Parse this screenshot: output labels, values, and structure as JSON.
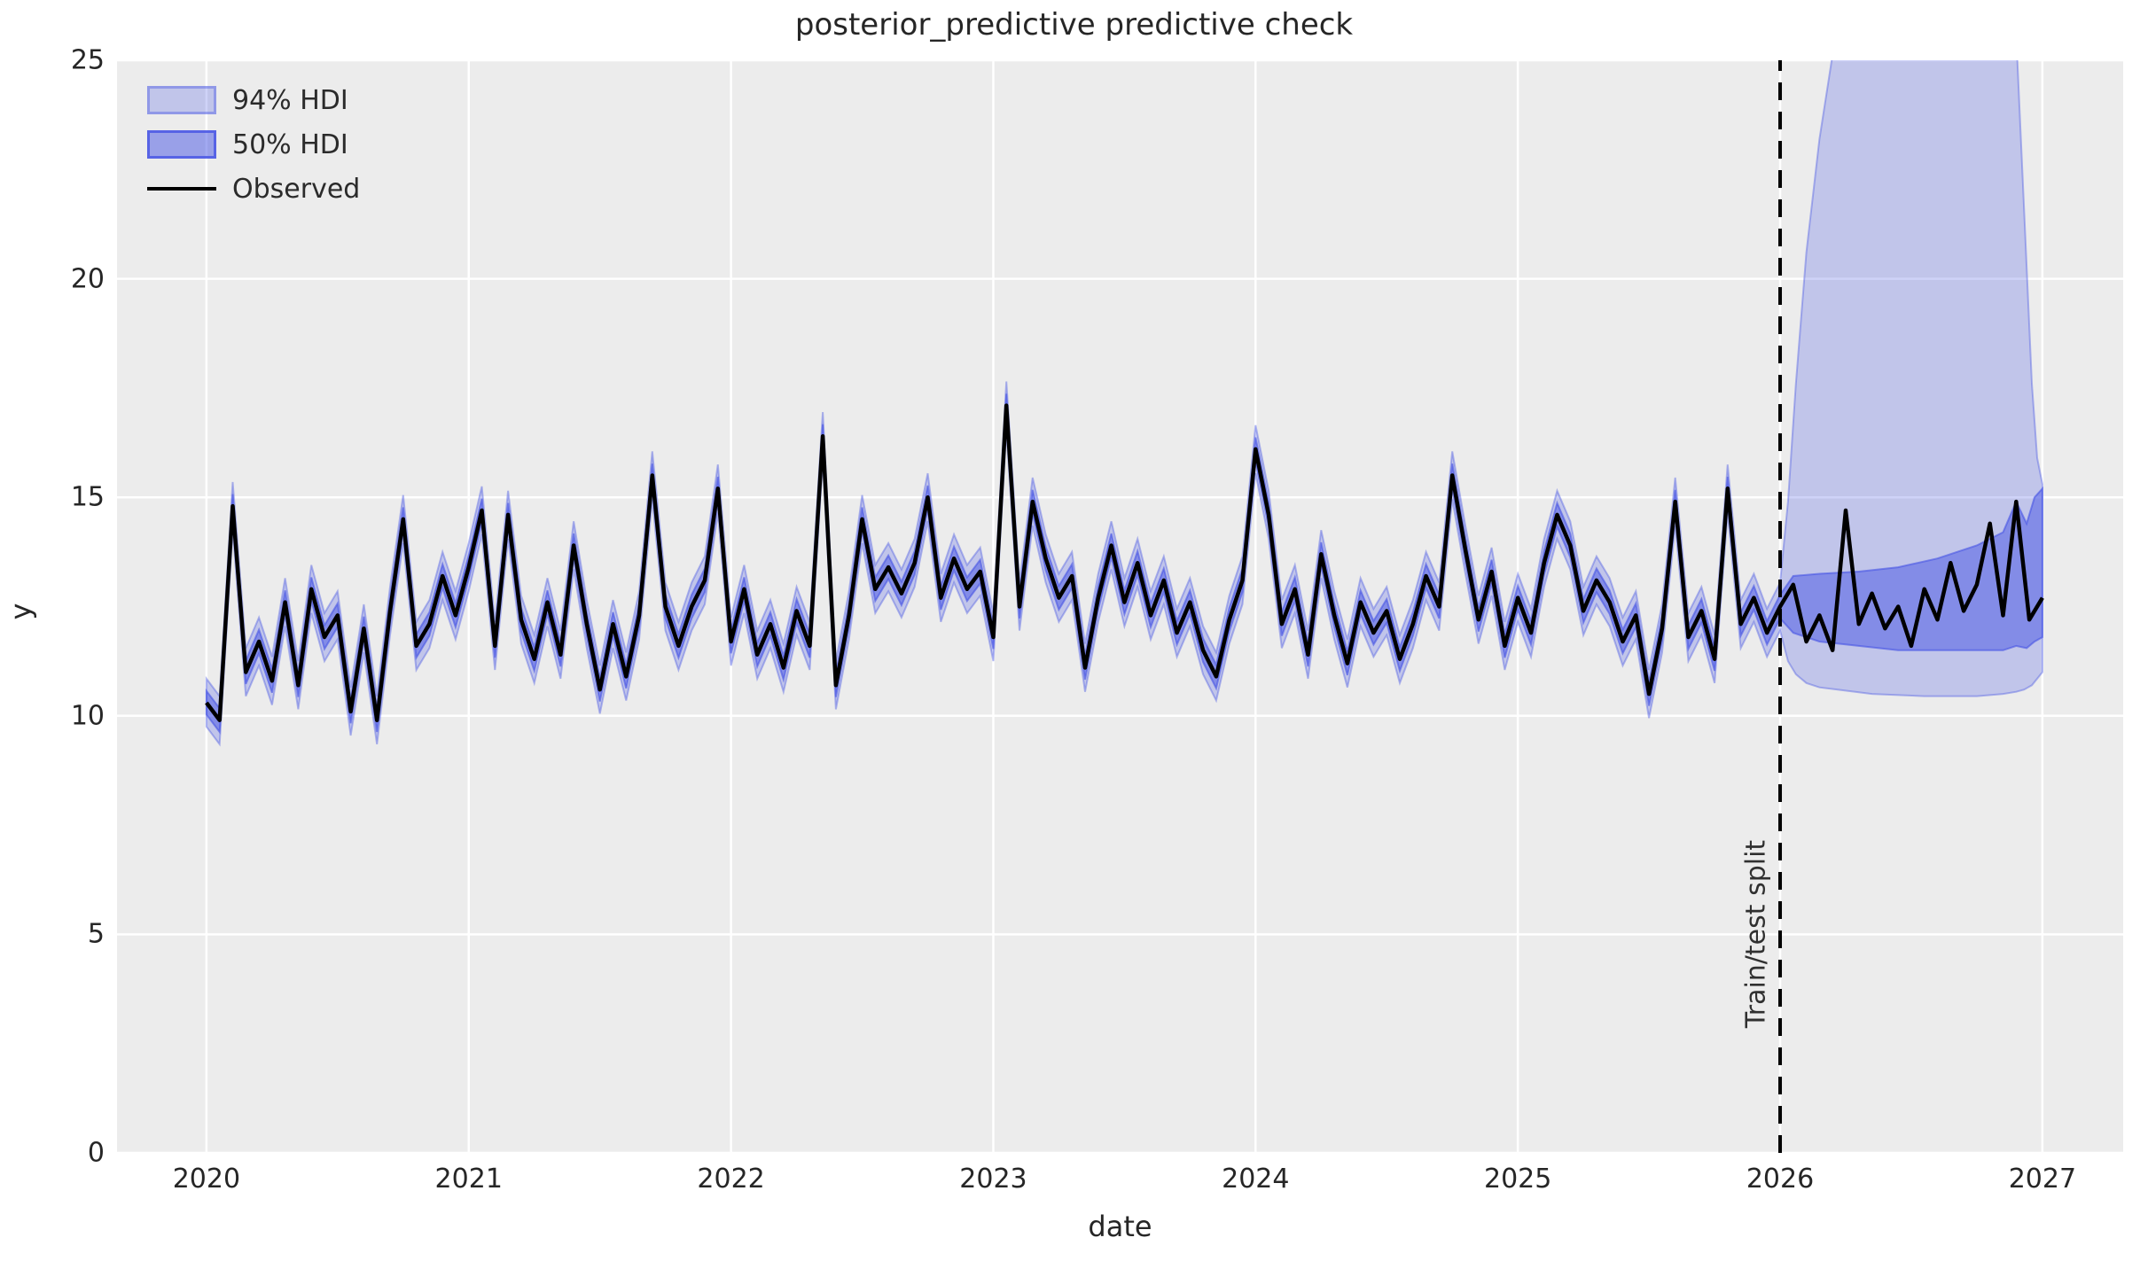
{
  "title": "posterior_predictive predictive check",
  "axes": {
    "xlabel": "date",
    "ylabel": "y"
  },
  "legend": {
    "items": [
      {
        "label": "94% HDI",
        "swatch": "hdi-94-patch"
      },
      {
        "label": "50% HDI",
        "swatch": "hdi-50-patch"
      },
      {
        "label": "Observed",
        "swatch": "black-line"
      }
    ]
  },
  "annotation": {
    "label": "Train/test split",
    "x": 2026.0
  },
  "colors": {
    "figure_background": "#ffffff",
    "plot_background": "#ececec",
    "gridline": "#ffffff",
    "observed_line": "#000000",
    "hdi_base_rgb": [
      70,
      84,
      228
    ],
    "hdi94_fill_alpha": 0.26,
    "hdi94_edge_alpha": 0.4,
    "hdi50_fill_alpha": 0.5,
    "hdi50_edge_alpha": 0.6,
    "split_line": "#000000",
    "text": "#262626"
  },
  "chart_data": {
    "type": "line",
    "title": "posterior_predictive predictive check",
    "xlabel": "date",
    "ylabel": "y",
    "xlim": [
      2019.659,
      2027.308
    ],
    "ylim": [
      0,
      25
    ],
    "xticks": [
      2020,
      2021,
      2022,
      2023,
      2024,
      2025,
      2026,
      2027
    ],
    "yticks": [
      0,
      5,
      10,
      15,
      20,
      25
    ],
    "grid": true,
    "legend_position": "upper-left",
    "train_test_split_x": 2026.0,
    "observed": {
      "name": "Observed",
      "x_start": 2020.0,
      "x_step_years": 0.05,
      "values": [
        10.3,
        9.9,
        14.8,
        11.0,
        11.7,
        10.8,
        12.6,
        10.7,
        12.9,
        11.8,
        12.3,
        10.1,
        12.0,
        9.9,
        12.4,
        14.5,
        11.6,
        12.1,
        13.2,
        12.3,
        13.4,
        14.7,
        11.6,
        14.6,
        12.2,
        11.3,
        12.6,
        11.4,
        13.9,
        12.1,
        10.6,
        12.1,
        10.9,
        12.3,
        15.5,
        12.5,
        11.6,
        12.5,
        13.1,
        15.2,
        11.7,
        12.9,
        11.4,
        12.1,
        11.1,
        12.4,
        11.6,
        16.4,
        10.7,
        12.3,
        14.5,
        12.9,
        13.4,
        12.8,
        13.5,
        15.0,
        12.7,
        13.6,
        12.9,
        13.3,
        11.8,
        17.1,
        12.5,
        14.9,
        13.6,
        12.7,
        13.2,
        11.1,
        12.7,
        13.9,
        12.6,
        13.5,
        12.3,
        13.1,
        11.9,
        12.6,
        11.5,
        10.9,
        12.2,
        13.1,
        16.1,
        14.6,
        12.1,
        12.9,
        11.4,
        13.7,
        12.3,
        11.2,
        12.6,
        11.9,
        12.4,
        11.3,
        12.1,
        13.2,
        12.5,
        15.5,
        13.8,
        12.2,
        13.3,
        11.6,
        12.7,
        11.9,
        13.5,
        14.6,
        13.9,
        12.4,
        13.1,
        12.6,
        11.7,
        12.3,
        10.5,
        12.0,
        14.9,
        11.8,
        12.4,
        11.3,
        15.2,
        12.1,
        12.7,
        11.9,
        12.5,
        13.0,
        11.7,
        12.3,
        11.5,
        14.7,
        12.1,
        12.8,
        12.0,
        12.5,
        11.6,
        12.9,
        12.2,
        13.5,
        12.4,
        13.0,
        14.4,
        12.3,
        14.9,
        12.2,
        12.7
      ]
    },
    "hdi94": {
      "name": "94% HDI",
      "halfwidth_train": 0.55,
      "test_envelope": [
        [
          2026.0,
          11.95,
          13.05
        ],
        [
          2026.03,
          11.25,
          14.9
        ],
        [
          2026.06,
          10.95,
          17.6
        ],
        [
          2026.1,
          10.75,
          20.6
        ],
        [
          2026.15,
          10.65,
          23.2
        ],
        [
          2026.22,
          10.6,
          25.9
        ],
        [
          2026.35,
          10.5,
          27.6
        ],
        [
          2026.55,
          10.45,
          28.4
        ],
        [
          2026.75,
          10.45,
          28.4
        ],
        [
          2026.85,
          10.5,
          27.6
        ],
        [
          2026.9,
          10.55,
          25.6
        ],
        [
          2026.93,
          10.6,
          21.6
        ],
        [
          2026.96,
          10.7,
          17.6
        ],
        [
          2026.98,
          10.85,
          15.9
        ],
        [
          2027.0,
          11.0,
          15.3
        ]
      ]
    },
    "hdi50": {
      "name": "50% HDI",
      "halfwidth_train": 0.27,
      "test_envelope": [
        [
          2026.0,
          12.23,
          12.77
        ],
        [
          2026.05,
          11.9,
          13.2
        ],
        [
          2026.15,
          11.7,
          13.25
        ],
        [
          2026.3,
          11.6,
          13.3
        ],
        [
          2026.45,
          11.5,
          13.4
        ],
        [
          2026.6,
          11.5,
          13.6
        ],
        [
          2026.75,
          11.5,
          13.9
        ],
        [
          2026.85,
          11.5,
          14.2
        ],
        [
          2026.9,
          11.6,
          14.9
        ],
        [
          2026.94,
          11.55,
          14.4
        ],
        [
          2026.97,
          11.7,
          15.0
        ],
        [
          2027.0,
          11.8,
          15.2
        ]
      ]
    }
  }
}
